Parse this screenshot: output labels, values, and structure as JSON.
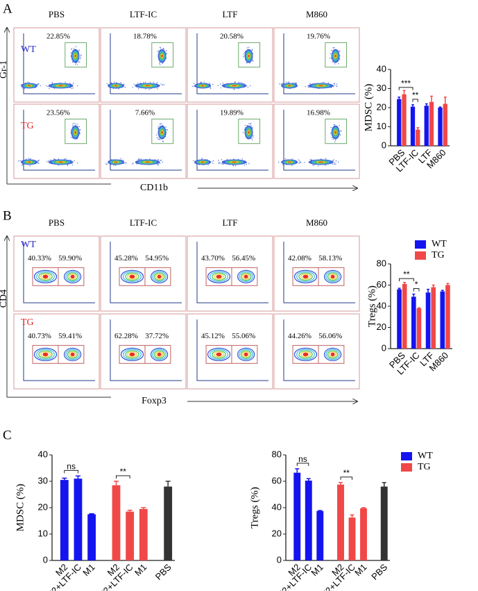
{
  "panel_labels": [
    "A",
    "B",
    "C"
  ],
  "flow_A": {
    "columns": [
      "PBS",
      "LTF-IC",
      "LTF",
      "M860"
    ],
    "rows": [
      "WT",
      "TG"
    ],
    "row_colors": [
      "#2a2acc",
      "#e02424"
    ],
    "y_axis": "Gr-1",
    "x_axis": "CD11b",
    "percentages": [
      [
        "22.85%",
        "18.78%",
        "20.58%",
        "19.76%"
      ],
      [
        "23.56%",
        "7.66%",
        "19.89%",
        "16.98%"
      ]
    ]
  },
  "flow_B": {
    "columns": [
      "PBS",
      "LTF-IC",
      "LTF",
      "M860"
    ],
    "rows": [
      "WT",
      "TG"
    ],
    "row_colors": [
      "#2a2acc",
      "#e02424"
    ],
    "y_axis": "CD4",
    "x_axis": "Foxp3",
    "percentages": [
      [
        [
          "40.33%",
          "59.90%"
        ],
        [
          "45.28%",
          "54.95%"
        ],
        [
          "43.70%",
          "56.45%"
        ],
        [
          "42.08%",
          "58.13%"
        ]
      ],
      [
        [
          "40.73%",
          "59.41%"
        ],
        [
          "62.28%",
          "37.72%"
        ],
        [
          "45.12%",
          "55.06%"
        ],
        [
          "44.26%",
          "56.06%"
        ]
      ]
    ]
  },
  "chart_data": [
    {
      "type": "grouped_bar",
      "y_label": "MDSC (%)",
      "categories": [
        "PBS",
        "LTF-IC",
        "LTF",
        "M860"
      ],
      "series": [
        {
          "color": "#1414f0",
          "values": [
            24.5,
            20.5,
            21,
            20
          ],
          "errors": [
            1,
            1,
            1,
            0.3
          ]
        },
        {
          "color": "#f04848",
          "values": [
            27,
            8.5,
            23,
            22
          ],
          "errors": [
            2,
            1,
            3,
            3.5
          ]
        }
      ],
      "ylim": [
        0,
        40
      ],
      "yticks": [
        0,
        10,
        20,
        30,
        40
      ],
      "annotations": [
        {
          "text": "***",
          "from": [
            0,
            0
          ],
          "to": [
            0,
            1
          ]
        },
        {
          "text": "**",
          "from": [
            0,
            1
          ],
          "to": [
            1,
            1
          ]
        }
      ]
    },
    {
      "type": "grouped_bar",
      "y_label": "Tregs (%)",
      "categories": [
        "PBS",
        "LTF-IC",
        "LTF",
        "M860"
      ],
      "series": [
        {
          "name": "WT",
          "color": "#1414f0",
          "values": [
            56,
            49,
            53,
            54
          ],
          "errors": [
            1,
            2.5,
            3,
            1
          ]
        },
        {
          "name": "TG",
          "color": "#f04848",
          "values": [
            61,
            38,
            58,
            60
          ],
          "errors": [
            1.5,
            0.5,
            2,
            1.5
          ]
        }
      ],
      "ylim": [
        0,
        80
      ],
      "yticks": [
        0,
        20,
        40,
        60,
        80
      ],
      "legend": "top-right",
      "annotations": [
        {
          "text": "**",
          "from": [
            0,
            0
          ],
          "to": [
            0,
            1
          ]
        },
        {
          "text": "*",
          "from": [
            0,
            1
          ],
          "to": [
            1,
            1
          ]
        }
      ]
    },
    {
      "type": "bar",
      "y_label": "MDSC (%)",
      "categories": [
        "M2",
        "M2+LTF-IC",
        "M1",
        "M2",
        "M2+LTF-IC",
        "M1",
        "PBS"
      ],
      "values": [
        30.5,
        31,
        17.5,
        28.5,
        18.5,
        19.5,
        28
      ],
      "errors": [
        0.7,
        1,
        0.2,
        1.5,
        0.5,
        0.5,
        2
      ],
      "colors": [
        "#1414f0",
        "#1414f0",
        "#1414f0",
        "#f04848",
        "#f04848",
        "#f04848",
        "#333333"
      ],
      "ylim": [
        0,
        40
      ],
      "yticks": [
        0,
        10,
        20,
        30,
        40
      ],
      "annotations": [
        {
          "text": "ns",
          "from": 0,
          "to": 1
        },
        {
          "text": "**",
          "from": 3,
          "to": 4
        }
      ]
    },
    {
      "type": "bar",
      "y_label": "Tregs (%)",
      "categories": [
        "M2",
        "M2+LTF-IC",
        "M1",
        "M2",
        "M2+LTF-IC",
        "M1",
        "PBS"
      ],
      "values": [
        66.5,
        60.5,
        37.5,
        57.5,
        32.5,
        39.5,
        56
      ],
      "errors": [
        3,
        1.5,
        0.3,
        1.5,
        2,
        0.5,
        3
      ],
      "colors": [
        "#1414f0",
        "#1414f0",
        "#1414f0",
        "#f04848",
        "#f04848",
        "#f04848",
        "#333333"
      ],
      "ylim": [
        0,
        80
      ],
      "yticks": [
        0,
        20,
        40,
        60,
        80
      ],
      "legend_entries": [
        {
          "name": "WT",
          "color": "#1414f0"
        },
        {
          "name": "TG",
          "color": "#f04848"
        }
      ],
      "legend": "top-right",
      "annotations": [
        {
          "text": "ns",
          "from": 0,
          "to": 1
        },
        {
          "text": "**",
          "from": 3,
          "to": 4
        }
      ]
    }
  ]
}
